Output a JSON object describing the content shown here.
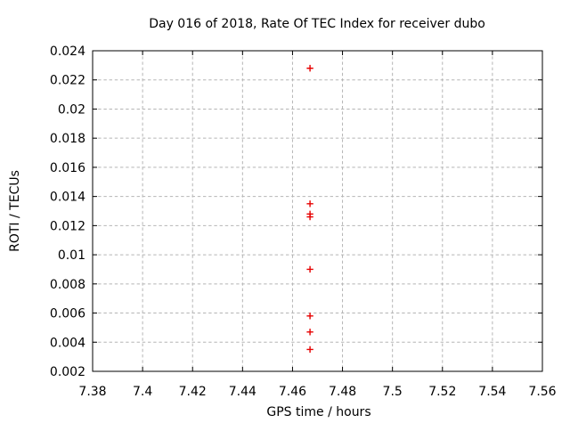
{
  "chart_data": {
    "type": "scatter",
    "title": "Day 016 of 2018, Rate Of TEC Index for receiver dubo",
    "xlabel": "GPS time / hours",
    "ylabel": "ROTI / TECUs",
    "xlim": [
      7.38,
      7.56
    ],
    "ylim": [
      0.002,
      0.024
    ],
    "xtick_values": [
      7.38,
      7.4,
      7.42,
      7.44,
      7.46,
      7.48,
      7.5,
      7.52,
      7.54,
      7.56
    ],
    "xtick_labels": [
      "7.38",
      "7.4",
      "7.42",
      "7.44",
      "7.46",
      "7.48",
      "7.5",
      "7.52",
      "7.54",
      "7.56"
    ],
    "ytick_values": [
      0.002,
      0.004,
      0.006,
      0.008,
      0.01,
      0.012,
      0.014,
      0.016,
      0.018,
      0.02,
      0.022,
      0.024
    ],
    "ytick_labels": [
      "0.002",
      "0.004",
      "0.006",
      "0.008",
      "0.01",
      "0.012",
      "0.014",
      "0.016",
      "0.018",
      "0.02",
      "0.022",
      "0.024"
    ],
    "grid": true,
    "legend_position": "none",
    "marker": "plus",
    "series": [
      {
        "name": "ROTI",
        "points": [
          [
            7.467,
            0.0228
          ],
          [
            7.467,
            0.0135
          ],
          [
            7.467,
            0.0128
          ],
          [
            7.467,
            0.0126
          ],
          [
            7.467,
            0.009
          ],
          [
            7.467,
            0.0058
          ],
          [
            7.467,
            0.0047
          ],
          [
            7.467,
            0.0035
          ]
        ]
      }
    ],
    "colors": {
      "marker": "#e60000",
      "grid": "#b5b5b5",
      "border": "#000000",
      "text": "#000000",
      "background": "#ffffff"
    }
  }
}
